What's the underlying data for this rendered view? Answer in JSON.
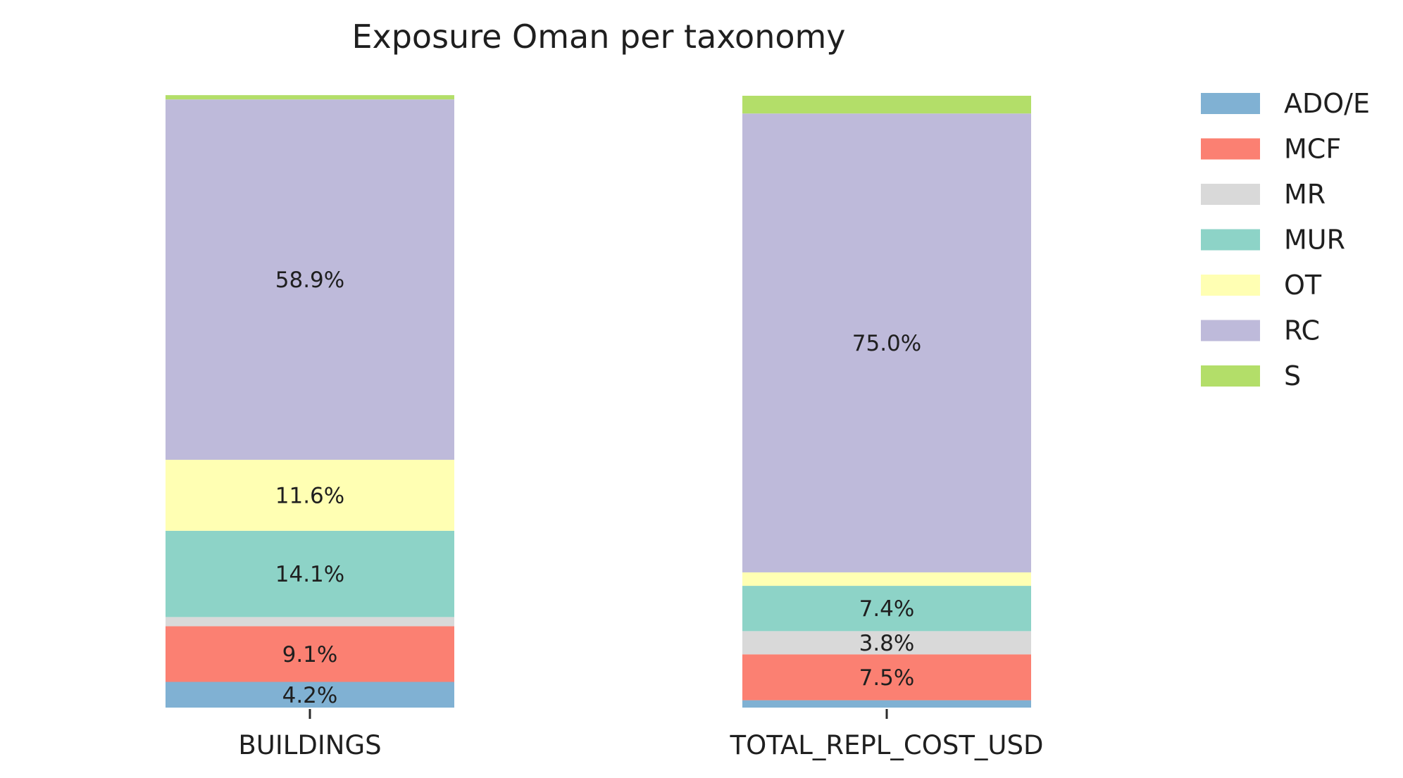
{
  "chart_data": {
    "type": "bar",
    "stacked": true,
    "normalized": true,
    "title": "Exposure Oman per taxonomy",
    "xlabel": "",
    "ylabel": "",
    "categories": [
      "BUILDINGS",
      "TOTAL_REPL_COST_USD"
    ],
    "ylim": [
      0,
      100
    ],
    "grid": false,
    "legend": "right",
    "series": [
      {
        "name": "ADO/E",
        "color": "#80b1d3",
        "values": [
          4.2,
          1.2
        ],
        "labels": [
          "4.2%",
          ""
        ]
      },
      {
        "name": "MCF",
        "color": "#fb8072",
        "values": [
          9.1,
          7.5
        ],
        "labels": [
          "9.1%",
          "7.5%"
        ]
      },
      {
        "name": "MR",
        "color": "#d9d9d9",
        "values": [
          1.5,
          3.8
        ],
        "labels": [
          "",
          "3.8%"
        ]
      },
      {
        "name": "MUR",
        "color": "#8dd3c7",
        "values": [
          14.1,
          7.4
        ],
        "labels": [
          "14.1%",
          "7.4%"
        ]
      },
      {
        "name": "OT",
        "color": "#ffffb3",
        "values": [
          11.6,
          2.2
        ],
        "labels": [
          "11.6%",
          ""
        ]
      },
      {
        "name": "RC",
        "color": "#bebada",
        "values": [
          58.9,
          75.0
        ],
        "labels": [
          "58.9%",
          "75.0%"
        ]
      },
      {
        "name": "S",
        "color": "#b3de69",
        "values": [
          0.7,
          2.9
        ],
        "labels": [
          "",
          ""
        ]
      }
    ]
  }
}
